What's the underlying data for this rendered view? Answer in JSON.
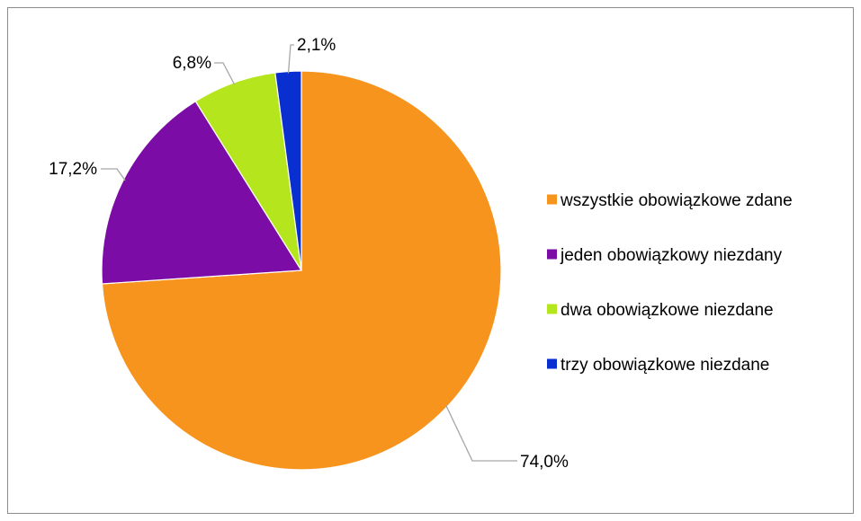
{
  "chart_data": {
    "type": "pie",
    "title": "",
    "categories": [
      "wszystkie obowiązkowe zdane",
      "jeden obowiązkowy niezdany",
      "dwa obowiązkowe niezdane",
      "trzy obowiązkowe niezdane"
    ],
    "values": [
      74.0,
      17.2,
      6.8,
      2.1
    ],
    "data_labels": [
      "74,0%",
      "17,2%",
      "6,8%",
      "2,1%"
    ],
    "colors": [
      "#F7941D",
      "#7B0DA6",
      "#B5E61D",
      "#0A2FD1"
    ],
    "start_angle_deg": 0,
    "direction": "clockwise",
    "legend_position": "right"
  }
}
